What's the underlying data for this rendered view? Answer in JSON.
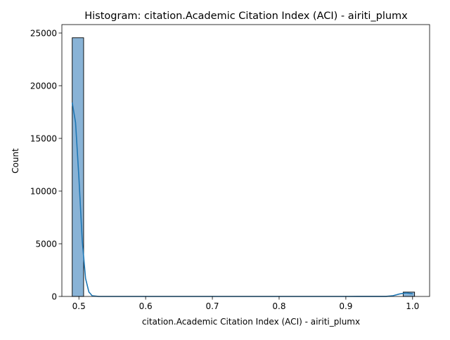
{
  "chart_data": {
    "type": "bar",
    "title": "Histogram: citation.Academic Citation Index (ACI) - airiti_plumx",
    "xlabel": "citation.Academic Citation Index (ACI) - airiti_plumx",
    "ylabel": "Count",
    "xlim": [
      0.4745,
      1.0255
    ],
    "ylim": [
      0,
      25800
    ],
    "xticks": [
      0.5,
      0.6,
      0.7,
      0.8,
      0.9,
      1.0
    ],
    "xtick_labels": [
      "0.5",
      "0.6",
      "0.7",
      "0.8",
      "0.9",
      "1.0"
    ],
    "yticks": [
      0,
      5000,
      10000,
      15000,
      20000,
      25000
    ],
    "ytick_labels": [
      "0",
      "5000",
      "10000",
      "15000",
      "20000",
      "25000"
    ],
    "bins": {
      "start": 0.49,
      "width": 0.0171,
      "counts": [
        24550,
        0,
        0,
        0,
        0,
        0,
        0,
        0,
        0,
        0,
        0,
        0,
        0,
        0,
        0,
        0,
        0,
        0,
        0,
        0,
        0,
        0,
        0,
        0,
        0,
        0,
        0,
        0,
        0,
        410
      ]
    },
    "kde": {
      "x": [
        0.49,
        0.495,
        0.5,
        0.505,
        0.51,
        0.515,
        0.52,
        0.53,
        0.6,
        0.7,
        0.8,
        0.9,
        0.96,
        0.97,
        0.98,
        0.99,
        1.0
      ],
      "y": [
        18400,
        16500,
        11300,
        5300,
        1700,
        420,
        60,
        0,
        0,
        0,
        0,
        0,
        5,
        60,
        230,
        340,
        260
      ]
    },
    "grid": false,
    "legend": "none",
    "colors": {
      "bar_fill": "#89b3d6",
      "bar_edge": "#000000",
      "kde_line": "#1f77b4"
    }
  }
}
